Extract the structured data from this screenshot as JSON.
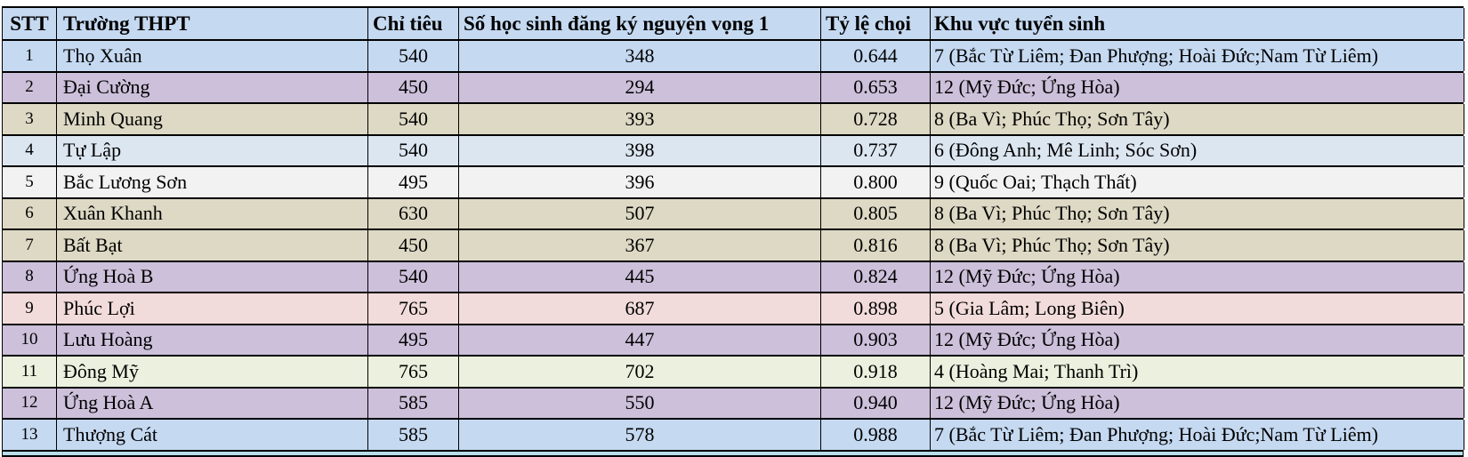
{
  "table": {
    "columns": [
      {
        "key": "stt",
        "label": "STT"
      },
      {
        "key": "school",
        "label": "Trường THPT"
      },
      {
        "key": "quota",
        "label": "Chỉ tiêu"
      },
      {
        "key": "nv1",
        "label": "Số học sinh đăng ký nguyện vọng 1"
      },
      {
        "key": "ratio",
        "label": "Tỷ lệ chọi"
      },
      {
        "key": "area",
        "label": "Khu vực tuyển sinh"
      }
    ],
    "header_bg": "#C5D9F1",
    "border_color": "#000000",
    "partial_next_row_bg": "#B7DEE8",
    "rows": [
      {
        "stt": "1",
        "school": "Thọ Xuân",
        "quota": "540",
        "nv1": "348",
        "ratio": "0.644",
        "area": "7 (Bắc Từ Liêm; Đan Phượng; Hoài Đức;Nam Từ Liêm)",
        "bg": "#C5D9F1"
      },
      {
        "stt": "2",
        "school": "Đại Cường",
        "quota": "450",
        "nv1": "294",
        "ratio": "0.653",
        "area": "12 (Mỹ Đức; Ứng Hòa)",
        "bg": "#CCC0DA"
      },
      {
        "stt": "3",
        "school": "Minh Quang",
        "quota": "540",
        "nv1": "393",
        "ratio": "0.728",
        "area": "8 (Ba Vì; Phúc Thọ; Sơn Tây)",
        "bg": "#DDD9C4"
      },
      {
        "stt": "4",
        "school": "Tự Lập",
        "quota": "540",
        "nv1": "398",
        "ratio": "0.737",
        "area": "6 (Đông Anh; Mê Linh; Sóc Sơn)",
        "bg": "#DCE6F1"
      },
      {
        "stt": "5",
        "school": "Bắc Lương Sơn",
        "quota": "495",
        "nv1": "396",
        "ratio": "0.800",
        "area": "9 (Quốc Oai; Thạch Thất)",
        "bg": "#F2F2F2"
      },
      {
        "stt": "6",
        "school": "Xuân Khanh",
        "quota": "630",
        "nv1": "507",
        "ratio": "0.805",
        "area": "8 (Ba Vì; Phúc Thọ; Sơn Tây)",
        "bg": "#DDD9C4"
      },
      {
        "stt": "7",
        "school": "Bất Bạt",
        "quota": "450",
        "nv1": "367",
        "ratio": "0.816",
        "area": "8 (Ba Vì; Phúc Thọ; Sơn Tây)",
        "bg": "#DDD9C4"
      },
      {
        "stt": "8",
        "school": "Ứng Hoà B",
        "quota": "540",
        "nv1": "445",
        "ratio": "0.824",
        "area": "12 (Mỹ Đức; Ứng Hòa)",
        "bg": "#CCC0DA"
      },
      {
        "stt": "9",
        "school": "Phúc Lợi",
        "quota": "765",
        "nv1": "687",
        "ratio": "0.898",
        "area": "5 (Gia Lâm; Long Biên)",
        "bg": "#F2DCDB"
      },
      {
        "stt": "10",
        "school": "Lưu Hoàng",
        "quota": "495",
        "nv1": "447",
        "ratio": "0.903",
        "area": "12 (Mỹ Đức; Ứng Hòa)",
        "bg": "#CCC0DA"
      },
      {
        "stt": "11",
        "school": "Đông Mỹ",
        "quota": "765",
        "nv1": "702",
        "ratio": "0.918",
        "area": "4 (Hoàng Mai; Thanh Trì)",
        "bg": "#EBF1DE"
      },
      {
        "stt": "12",
        "school": "Ứng Hoà A",
        "quota": "585",
        "nv1": "550",
        "ratio": "0.940",
        "area": "12 (Mỹ Đức; Ứng Hòa)",
        "bg": "#CCC0DA"
      },
      {
        "stt": "13",
        "school": "Thượng Cát",
        "quota": "585",
        "nv1": "578",
        "ratio": "0.988",
        "area": "7 (Bắc Từ Liêm; Đan Phượng; Hoài Đức;Nam Từ Liêm)",
        "bg": "#C5D9F1"
      }
    ]
  }
}
